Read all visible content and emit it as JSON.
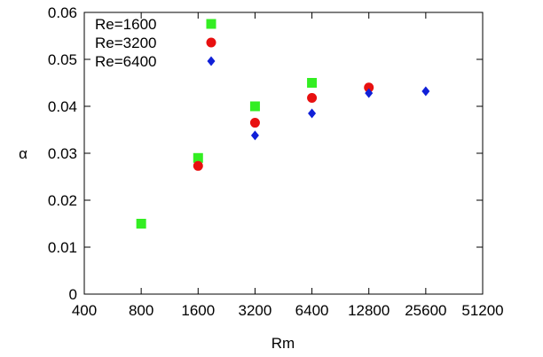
{
  "chart_data": {
    "type": "scatter",
    "title": "",
    "xlabel": "Rm",
    "ylabel": "α",
    "x_scale": "log2",
    "xlim": [
      400,
      51200
    ],
    "ylim": [
      0,
      0.06
    ],
    "x_ticks": [
      400,
      800,
      1600,
      3200,
      6400,
      12800,
      25600,
      51200
    ],
    "x_tick_labels": [
      "400",
      "800",
      "1600",
      "3200",
      "6400",
      "12800",
      "25600",
      "51200"
    ],
    "y_ticks": [
      0,
      0.01,
      0.02,
      0.03,
      0.04,
      0.05,
      0.06
    ],
    "y_tick_labels": [
      "0",
      "0.01",
      "0.02",
      "0.03",
      "0.04",
      "0.05",
      "0.06"
    ],
    "grid": false,
    "legend_position": "top-left",
    "series": [
      {
        "name": "Re=1600",
        "marker": "square",
        "color": "#33ee22",
        "points": [
          {
            "x": 800,
            "y": 0.015
          },
          {
            "x": 1600,
            "y": 0.029
          },
          {
            "x": 3200,
            "y": 0.04
          },
          {
            "x": 6400,
            "y": 0.045
          }
        ]
      },
      {
        "name": "Re=3200",
        "marker": "circle",
        "color": "#e81010",
        "points": [
          {
            "x": 1600,
            "y": 0.0273
          },
          {
            "x": 3200,
            "y": 0.0365
          },
          {
            "x": 6400,
            "y": 0.0418
          },
          {
            "x": 12800,
            "y": 0.044
          }
        ]
      },
      {
        "name": "Re=6400",
        "marker": "diamond",
        "color": "#1020d8",
        "points": [
          {
            "x": 3200,
            "y": 0.0338
          },
          {
            "x": 6400,
            "y": 0.0385
          },
          {
            "x": 12800,
            "y": 0.0428
          },
          {
            "x": 25600,
            "y": 0.0432
          }
        ]
      }
    ]
  }
}
